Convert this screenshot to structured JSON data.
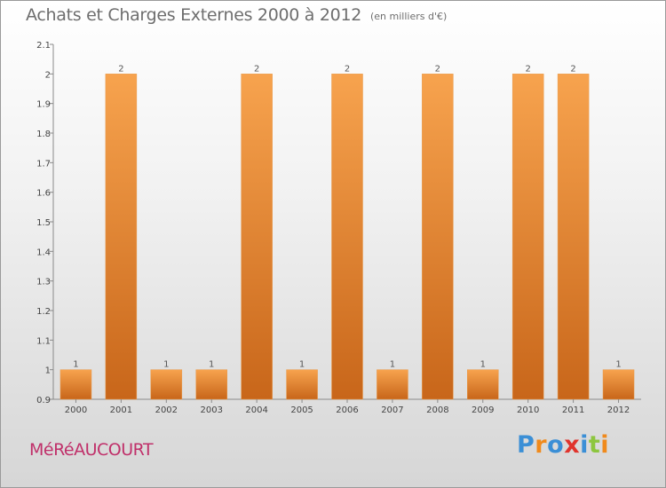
{
  "header": {
    "title": "Achats et Charges Externes 2000 à 2012",
    "unit": "(en milliers d'€)"
  },
  "commune": "MéRéAUCOURT",
  "logo": {
    "letters": [
      "P",
      "r",
      "o",
      "x",
      "i",
      "t",
      "i"
    ],
    "colors": [
      "#3b8fd6",
      "#f08a1c",
      "#3b8fd6",
      "#e0342d",
      "#3b8fd6",
      "#8dc63f",
      "#f08a1c"
    ]
  },
  "chart_data": {
    "type": "bar",
    "categories": [
      "2000",
      "2001",
      "2002",
      "2003",
      "2004",
      "2005",
      "2006",
      "2007",
      "2008",
      "2009",
      "2010",
      "2011",
      "2012"
    ],
    "values": [
      1,
      2,
      1,
      1,
      2,
      1,
      2,
      1,
      2,
      1,
      2,
      2,
      1
    ],
    "data_labels": [
      "1",
      "2",
      "1",
      "1",
      "2",
      "1",
      "2",
      "1",
      "2",
      "1",
      "2",
      "2",
      "1"
    ],
    "title": "Achats et Charges Externes 2000 à 2012",
    "ylim": [
      0.9,
      2.1
    ],
    "y_ticks": [
      "0.9",
      "1",
      "1.1",
      "1.2",
      "1.3",
      "1.4",
      "1.5",
      "1.6",
      "1.7",
      "1.8",
      "1.9",
      "2",
      "2.1"
    ],
    "grid": false,
    "bar_color_top": "#f7a34e",
    "bar_color_bottom": "#c8661a"
  }
}
